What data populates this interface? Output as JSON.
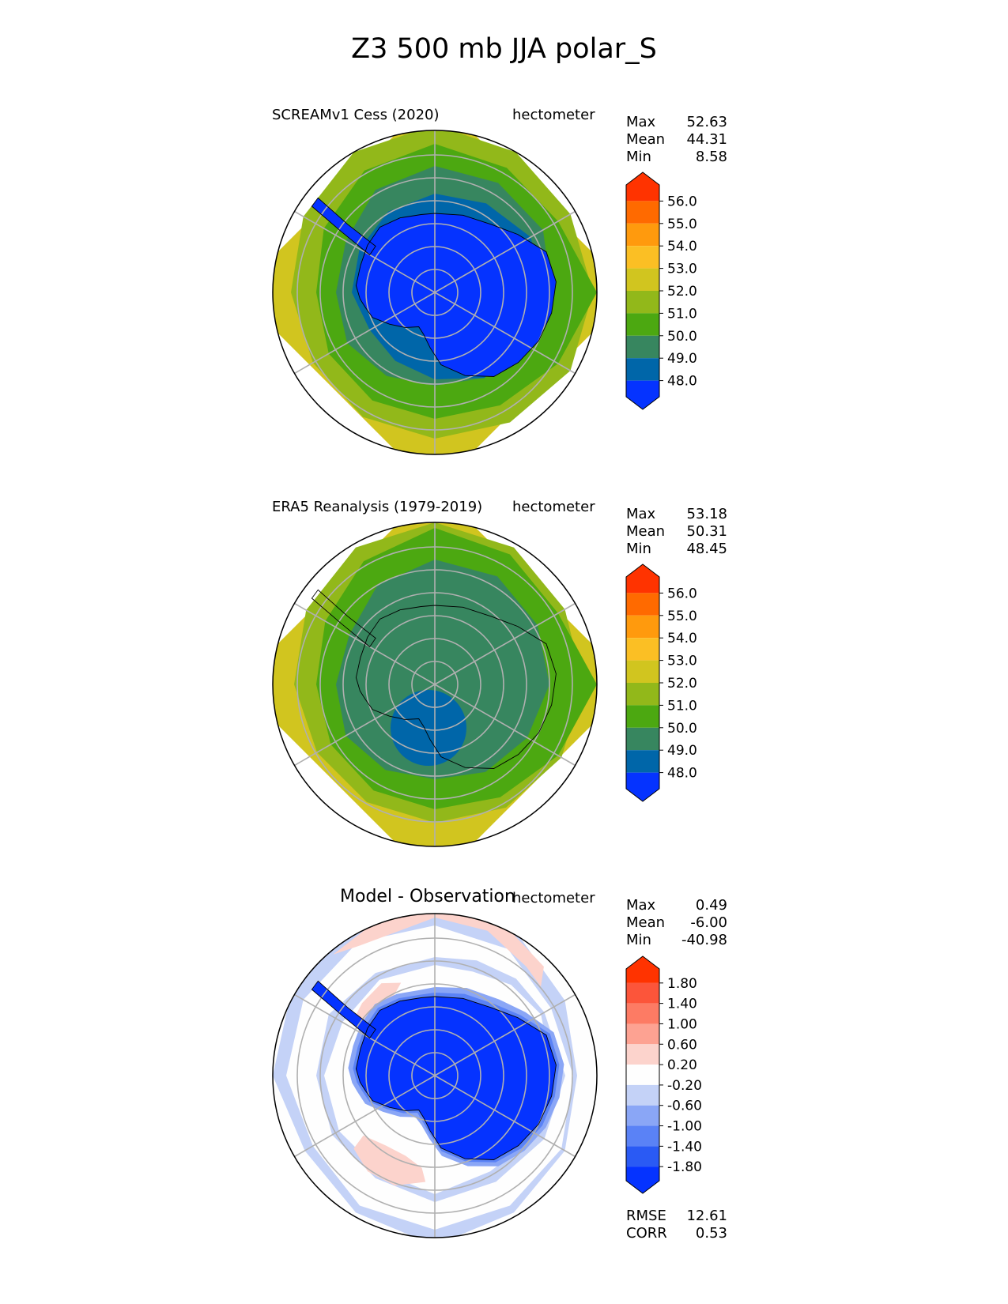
{
  "title": "Z3 500 mb JJA polar_S",
  "colors": {
    "base": [
      "#0533ff",
      "#0066a9",
      "#37865f",
      "#4ca811",
      "#92b81a",
      "#d1c51f",
      "#fbbf24",
      "#ff9a0d",
      "#ff6a00",
      "#ff3300"
    ],
    "diff": [
      "#0533ff",
      "#2a5af4",
      "#5a82f6",
      "#8aa6f6",
      "#c4d2f7",
      "#fefefe",
      "#fcd3cc",
      "#fda292",
      "#fd7b64",
      "#fc553a",
      "#ff3300"
    ]
  },
  "chart_data": [
    {
      "type": "heatmap",
      "projection": "south polar stereographic",
      "title": "SCREAMv1 Cess (2020)",
      "units": "hectometer",
      "stats": {
        "max": "52.63",
        "mean": "44.31",
        "min": "8.58"
      },
      "stat_labels": {
        "max": "Max",
        "mean": "Mean",
        "min": "Min"
      },
      "colorbar_ticks": [
        "48.0",
        "49.0",
        "50.0",
        "51.0",
        "52.0",
        "53.0",
        "54.0",
        "55.0",
        "56.0"
      ],
      "colorbar_palette": "base"
    },
    {
      "type": "heatmap",
      "projection": "south polar stereographic",
      "title": "ERA5 Reanalysis (1979-2019)",
      "units": "hectometer",
      "stats": {
        "max": "53.18",
        "mean": "50.31",
        "min": "48.45"
      },
      "stat_labels": {
        "max": "Max",
        "mean": "Mean",
        "min": "Min"
      },
      "colorbar_ticks": [
        "48.0",
        "49.0",
        "50.0",
        "51.0",
        "52.0",
        "53.0",
        "54.0",
        "55.0",
        "56.0"
      ],
      "colorbar_palette": "base"
    },
    {
      "type": "heatmap",
      "projection": "south polar stereographic",
      "title": "Model - Observation",
      "units": "hectometer",
      "stats": {
        "max": "0.49",
        "mean": "-6.00",
        "min": "-40.98"
      },
      "stat_labels": {
        "max": "Max",
        "mean": "Mean",
        "min": "Min"
      },
      "colorbar_ticks": [
        "-1.80",
        "-1.40",
        "-1.00",
        "-0.60",
        "-0.20",
        "0.20",
        "0.60",
        "1.00",
        "1.40",
        "1.80"
      ],
      "colorbar_palette": "diff",
      "metrics": {
        "rmse": "12.61",
        "corr": "0.53"
      },
      "metric_labels": {
        "rmse": "RMSE",
        "corr": "CORR"
      }
    }
  ]
}
